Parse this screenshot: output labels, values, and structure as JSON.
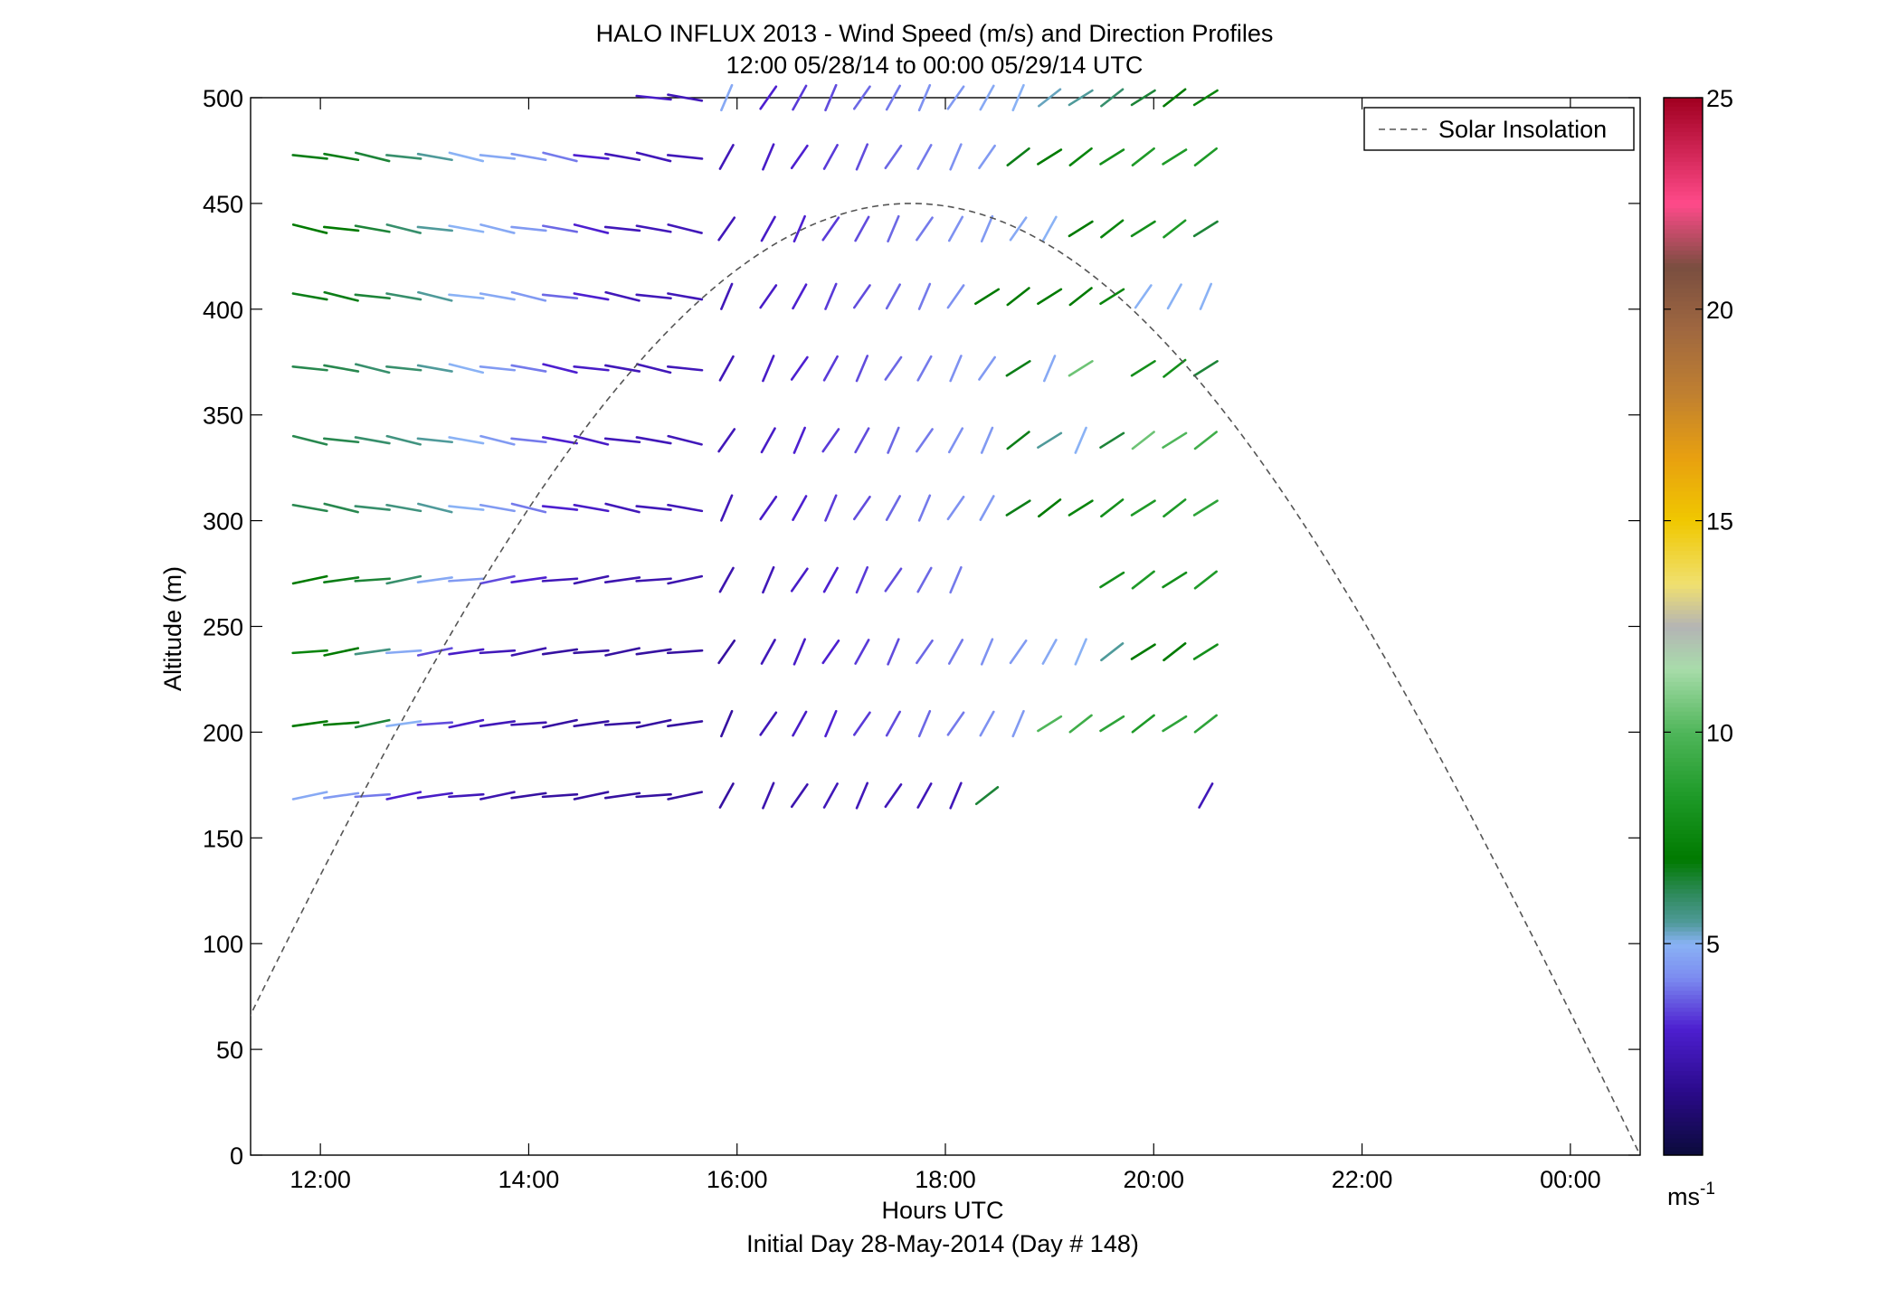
{
  "chart_data": {
    "type": "wind-barb-profile",
    "title": "HALO INFLUX 2013 - Wind Speed (m/s) and Direction Profiles",
    "subtitle": "12:00 05/28/14 to 00:00 05/29/14  UTC",
    "xlabel": "Hours UTC",
    "xlabel2": "Initial Day 28-May-2014 (Day # 148)",
    "ylabel": "Altitude (m)",
    "xlim_hours": [
      11.33,
      24.67
    ],
    "ylim": [
      0,
      500
    ],
    "x_ticks": [
      {
        "v": 12,
        "label": "12:00"
      },
      {
        "v": 14,
        "label": "14:00"
      },
      {
        "v": 16,
        "label": "16:00"
      },
      {
        "v": 18,
        "label": "18:00"
      },
      {
        "v": 20,
        "label": "20:00"
      },
      {
        "v": 22,
        "label": "22:00"
      },
      {
        "v": 24,
        "label": "00:00"
      }
    ],
    "y_ticks": [
      0,
      50,
      100,
      150,
      200,
      250,
      300,
      350,
      400,
      450,
      500
    ],
    "legend": {
      "label": "Solar Insolation",
      "placement": "top-right",
      "line_style": "dashed",
      "color": "#555555"
    },
    "colorbar": {
      "range": [
        0,
        25
      ],
      "ticks": [
        5,
        10,
        15,
        20,
        25
      ],
      "unit_label": "ms",
      "unit_exponent": "-1"
    },
    "solar_insolation_curve": {
      "peak_hour": 17.67,
      "peak_altitude": 450,
      "zero_hours": [
        10.8,
        24.8
      ]
    },
    "altitude_levels": [
      170,
      204,
      238,
      272,
      306,
      338,
      372,
      406,
      438,
      472,
      500
    ],
    "wind_profiles": [
      {
        "time": 11.9,
        "speeds": [
          4.8,
          7.0,
          7.5,
          7.0,
          6.3,
          6.3,
          6.3,
          6.8,
          7.0,
          6.8,
          null
        ]
      },
      {
        "time": 12.2,
        "speeds": [
          4.5,
          7.0,
          7.0,
          6.8,
          6.3,
          6.3,
          6.3,
          6.8,
          7.0,
          6.8,
          null
        ]
      },
      {
        "time": 12.5,
        "speeds": [
          4.0,
          6.5,
          5.8,
          6.5,
          6.0,
          6.0,
          6.0,
          6.5,
          6.5,
          6.5,
          null
        ]
      },
      {
        "time": 12.8,
        "speeds": [
          3.0,
          5.0,
          4.8,
          6.0,
          5.8,
          5.8,
          6.0,
          6.0,
          6.0,
          6.0,
          null
        ]
      },
      {
        "time": 13.1,
        "speeds": [
          2.8,
          3.5,
          3.5,
          4.8,
          5.5,
          5.5,
          5.5,
          5.5,
          5.5,
          5.5,
          null
        ]
      },
      {
        "time": 13.4,
        "speeds": [
          2.5,
          2.8,
          2.8,
          4.5,
          5.0,
          5.0,
          5.0,
          5.0,
          5.0,
          5.0,
          null
        ]
      },
      {
        "time": 13.7,
        "speeds": [
          2.3,
          2.5,
          2.5,
          3.5,
          4.5,
          4.5,
          4.5,
          4.8,
          4.8,
          4.8,
          null
        ]
      },
      {
        "time": 14.0,
        "speeds": [
          2.0,
          2.3,
          2.3,
          3.0,
          4.0,
          4.0,
          4.0,
          4.5,
          4.5,
          4.5,
          null
        ]
      },
      {
        "time": 14.3,
        "speeds": [
          2.0,
          2.0,
          2.0,
          2.5,
          3.0,
          3.0,
          3.0,
          3.8,
          3.8,
          4.0,
          null
        ]
      },
      {
        "time": 14.6,
        "speeds": [
          2.0,
          2.0,
          2.0,
          2.3,
          2.8,
          2.8,
          2.8,
          3.0,
          3.0,
          3.0,
          null
        ]
      },
      {
        "time": 14.9,
        "speeds": [
          2.0,
          2.0,
          2.0,
          2.3,
          2.5,
          2.5,
          2.5,
          2.5,
          2.5,
          2.5,
          null
        ]
      },
      {
        "time": 15.2,
        "speeds": [
          2.0,
          2.0,
          2.0,
          2.3,
          2.5,
          2.5,
          2.5,
          2.5,
          2.5,
          2.5,
          2.8
        ]
      },
      {
        "time": 15.5,
        "speeds": [
          2.0,
          2.0,
          2.0,
          2.3,
          2.5,
          2.5,
          2.5,
          2.5,
          2.5,
          2.5,
          2.5
        ]
      },
      {
        "time": 15.9,
        "speeds": [
          2.0,
          2.0,
          2.0,
          2.3,
          2.5,
          2.5,
          2.5,
          2.5,
          2.5,
          2.5,
          4.8
        ]
      },
      {
        "time": 16.3,
        "speeds": [
          2.3,
          2.5,
          2.5,
          2.5,
          2.8,
          2.8,
          2.8,
          2.8,
          2.8,
          2.8,
          3.0
        ]
      },
      {
        "time": 16.6,
        "speeds": [
          2.3,
          2.8,
          2.8,
          2.8,
          3.0,
          3.0,
          3.0,
          3.0,
          3.0,
          3.0,
          3.3
        ]
      },
      {
        "time": 16.9,
        "speeds": [
          2.5,
          3.0,
          3.0,
          3.0,
          3.3,
          3.3,
          3.3,
          3.3,
          3.3,
          3.3,
          3.5
        ]
      },
      {
        "time": 17.2,
        "speeds": [
          2.5,
          3.3,
          3.3,
          3.3,
          3.5,
          3.5,
          3.5,
          3.5,
          3.5,
          3.5,
          3.8
        ]
      },
      {
        "time": 17.5,
        "speeds": [
          2.5,
          3.5,
          3.5,
          3.5,
          3.8,
          3.8,
          3.8,
          3.8,
          3.8,
          3.8,
          4.0
        ]
      },
      {
        "time": 17.8,
        "speeds": [
          2.5,
          3.8,
          3.8,
          3.8,
          4.0,
          4.0,
          4.0,
          4.0,
          4.0,
          4.0,
          4.3
        ]
      },
      {
        "time": 18.1,
        "speeds": [
          2.5,
          4.0,
          4.0,
          4.0,
          4.3,
          4.3,
          4.3,
          4.3,
          4.3,
          4.3,
          4.5
        ]
      },
      {
        "time": 18.4,
        "speeds": [
          6.5,
          4.3,
          4.3,
          null,
          4.5,
          4.5,
          4.5,
          7.0,
          4.5,
          4.5,
          4.8
        ]
      },
      {
        "time": 18.7,
        "speeds": [
          null,
          4.5,
          4.5,
          null,
          6.8,
          6.8,
          6.8,
          7.0,
          4.8,
          6.8,
          5.0
        ]
      },
      {
        "time": 19.0,
        "speeds": [
          null,
          10.0,
          4.8,
          null,
          7.0,
          5.5,
          4.8,
          7.0,
          5.0,
          7.0,
          5.3
        ]
      },
      {
        "time": 19.3,
        "speeds": [
          null,
          9.5,
          5.0,
          null,
          7.5,
          5.0,
          10.5,
          7.0,
          7.0,
          7.5,
          5.5
        ]
      },
      {
        "time": 19.6,
        "speeds": [
          null,
          9.0,
          5.5,
          8.0,
          8.0,
          6.5,
          null,
          7.5,
          7.5,
          8.0,
          6.0
        ]
      },
      {
        "time": 19.9,
        "speeds": [
          null,
          8.5,
          7.0,
          8.5,
          8.5,
          10.5,
          8.0,
          5.0,
          8.0,
          8.5,
          6.5
        ]
      },
      {
        "time": 20.2,
        "speeds": [
          null,
          9.0,
          7.0,
          8.0,
          8.5,
          10.0,
          8.0,
          5.0,
          8.5,
          8.5,
          7.0
        ]
      },
      {
        "time": 20.5,
        "speeds": [
          2.5,
          9.0,
          8.0,
          8.5,
          9.0,
          9.5,
          6.5,
          5.0,
          6.5,
          8.5,
          7.5
        ]
      }
    ]
  }
}
